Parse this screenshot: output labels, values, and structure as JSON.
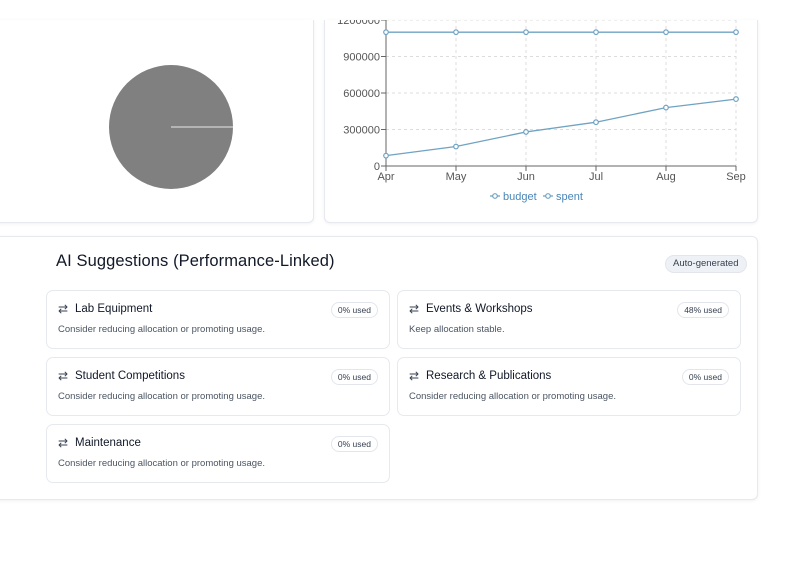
{
  "pie": {
    "color": "#808080"
  },
  "chart_data": {
    "type": "line",
    "x": [
      "Apr",
      "May",
      "Jun",
      "Jul",
      "Aug",
      "Sep"
    ],
    "ylim": [
      0,
      1200000
    ],
    "y_ticks": [
      "0",
      "300000",
      "600000",
      "900000",
      "1200000"
    ],
    "grid": true,
    "legend_position": "bottom",
    "series": [
      {
        "name": "budget",
        "values": [
          1100000,
          1100000,
          1100000,
          1100000,
          1100000,
          1100000
        ],
        "color": "#6fa3c2"
      },
      {
        "name": "spent",
        "values": [
          85000,
          160000,
          280000,
          360000,
          480000,
          550000
        ],
        "color": "#6fa3c2"
      }
    ]
  },
  "suggestions": {
    "title": "AI Suggestions (Performance-Linked)",
    "badge": "Auto-generated",
    "icon": "swap-arrows-icon",
    "swap_glyph": "⇄",
    "items": [
      {
        "name": "Lab Equipment",
        "used": "0% used",
        "desc": "Consider reducing allocation or promoting usage."
      },
      {
        "name": "Events & Workshops",
        "used": "48% used",
        "desc": "Keep allocation stable."
      },
      {
        "name": "Student Competitions",
        "used": "0% used",
        "desc": "Consider reducing allocation or promoting usage."
      },
      {
        "name": "Research & Publications",
        "used": "0% used",
        "desc": "Consider reducing allocation or promoting usage."
      },
      {
        "name": "Maintenance",
        "used": "0% used",
        "desc": "Consider reducing allocation or promoting usage."
      }
    ]
  }
}
